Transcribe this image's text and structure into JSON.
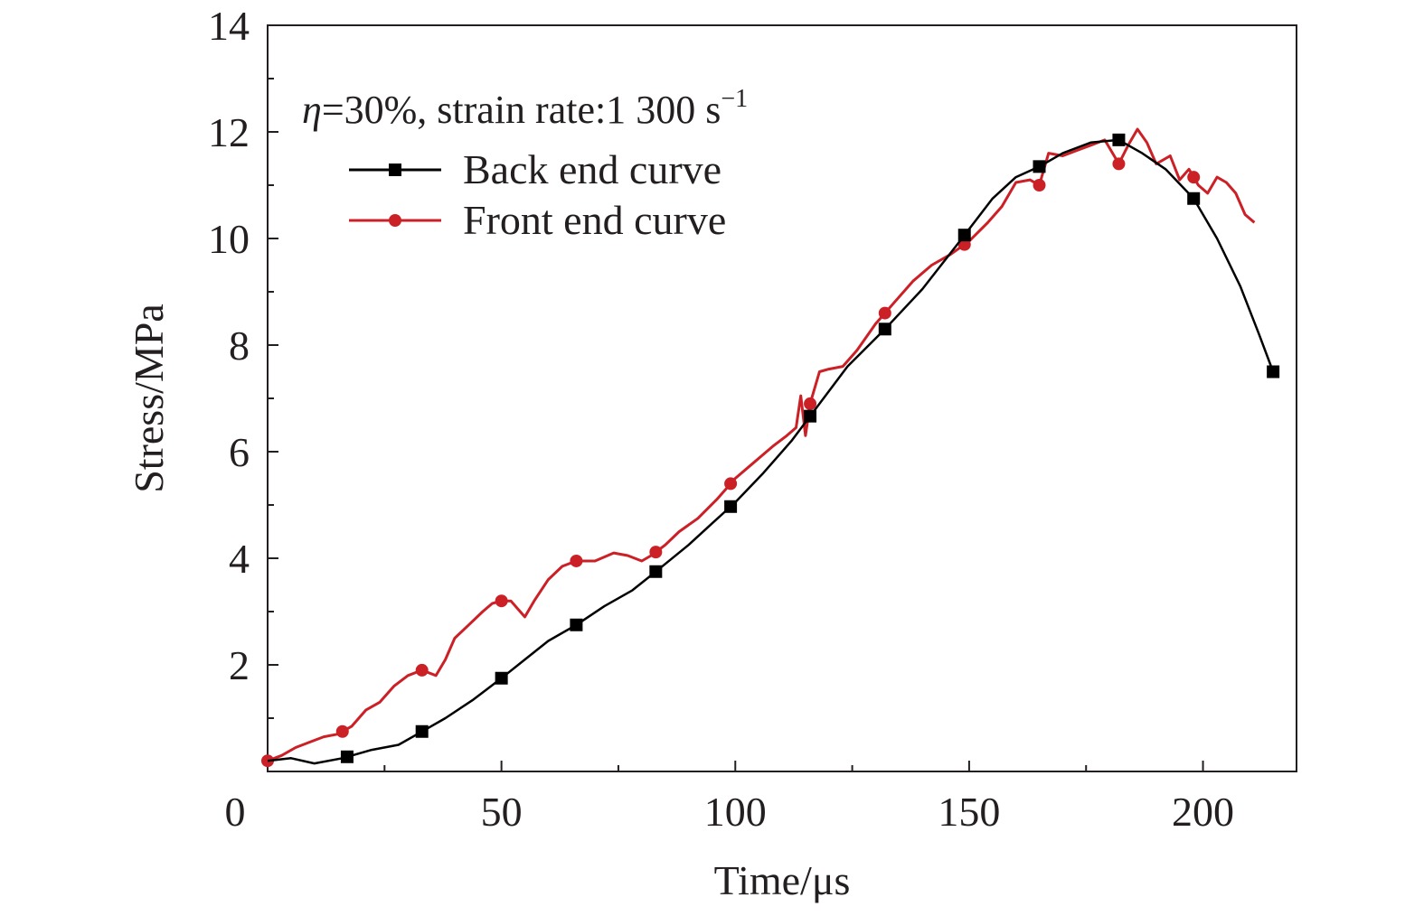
{
  "chart_data": {
    "type": "line",
    "xlabel": "Time/μs",
    "ylabel": "Stress/MPa",
    "xlim": [
      0,
      220
    ],
    "ylim": [
      0,
      14
    ],
    "x_ticks": [
      0,
      50,
      100,
      150,
      200
    ],
    "x_tick_labels": [
      "0",
      "50",
      "100",
      "150",
      "200"
    ],
    "y_ticks": [
      2,
      4,
      6,
      8,
      10,
      12,
      14
    ],
    "y_tick_labels": [
      "2",
      "4",
      "6",
      "8",
      "10",
      "12",
      "14"
    ],
    "grid": false,
    "legend_position": "top-left",
    "annotation": {
      "eta": "η",
      "text": "=30%, strain rate:1 300 s",
      "superscript": "−1"
    },
    "series": [
      {
        "name": "Back end curve",
        "color": "#000000",
        "marker": "square",
        "x": [
          0,
          5,
          10,
          16,
          22,
          28,
          33,
          38,
          44,
          50,
          55,
          60,
          66,
          72,
          78,
          83,
          90,
          95,
          100,
          106,
          112,
          118,
          124,
          132,
          140,
          148,
          155,
          160,
          165,
          170,
          176,
          182,
          187,
          192,
          198,
          203,
          208,
          212,
          215
        ],
        "y": [
          0.2,
          0.25,
          0.15,
          0.25,
          0.4,
          0.5,
          0.75,
          1.0,
          1.35,
          1.75,
          2.1,
          2.45,
          2.75,
          3.1,
          3.4,
          3.75,
          4.25,
          4.65,
          5.05,
          5.6,
          6.2,
          6.9,
          7.6,
          8.3,
          9.05,
          9.95,
          10.75,
          11.15,
          11.35,
          11.6,
          11.8,
          11.85,
          11.6,
          11.3,
          10.75,
          10.0,
          9.1,
          8.2,
          7.5
        ],
        "marker_x": [
          17,
          33,
          50,
          66,
          83,
          99,
          116,
          132,
          149,
          165,
          182,
          198,
          215
        ]
      },
      {
        "name": "Front end curve",
        "color": "#cc2027",
        "marker": "circle",
        "x": [
          0,
          3,
          6,
          9,
          12,
          15,
          18,
          21,
          24,
          27,
          30,
          33,
          36,
          38,
          40,
          43,
          46,
          48,
          50,
          52,
          54,
          55,
          57,
          60,
          63,
          66,
          70,
          74,
          77,
          80,
          82,
          85,
          88,
          92,
          96,
          100,
          104,
          108,
          111,
          113,
          114,
          115,
          116,
          118,
          120,
          123,
          126,
          130,
          134,
          138,
          142,
          146,
          150,
          154,
          157,
          160,
          163,
          165,
          167,
          170,
          173,
          176,
          179,
          181,
          182,
          184,
          186,
          188,
          190,
          193,
          195,
          197,
          199,
          201,
          203,
          205,
          207,
          209,
          211
        ],
        "y": [
          0.2,
          0.3,
          0.45,
          0.55,
          0.65,
          0.7,
          0.85,
          1.15,
          1.3,
          1.6,
          1.8,
          1.9,
          1.8,
          2.1,
          2.5,
          2.75,
          3.0,
          3.15,
          3.2,
          3.2,
          3.0,
          2.9,
          3.2,
          3.6,
          3.85,
          3.95,
          3.95,
          4.1,
          4.05,
          3.95,
          4.05,
          4.25,
          4.5,
          4.75,
          5.1,
          5.5,
          5.8,
          6.1,
          6.3,
          6.45,
          7.05,
          6.3,
          6.9,
          7.5,
          7.55,
          7.6,
          7.9,
          8.4,
          8.8,
          9.2,
          9.5,
          9.7,
          9.95,
          10.3,
          10.6,
          11.05,
          11.1,
          11.0,
          11.6,
          11.55,
          11.65,
          11.75,
          11.85,
          11.55,
          11.4,
          11.75,
          12.05,
          11.8,
          11.4,
          11.55,
          11.1,
          11.3,
          11.0,
          10.85,
          11.15,
          11.05,
          10.85,
          10.45,
          10.3
        ],
        "marker_x": [
          0,
          16,
          33,
          50,
          66,
          83,
          99,
          116,
          132,
          149,
          165,
          182,
          198
        ]
      }
    ]
  }
}
